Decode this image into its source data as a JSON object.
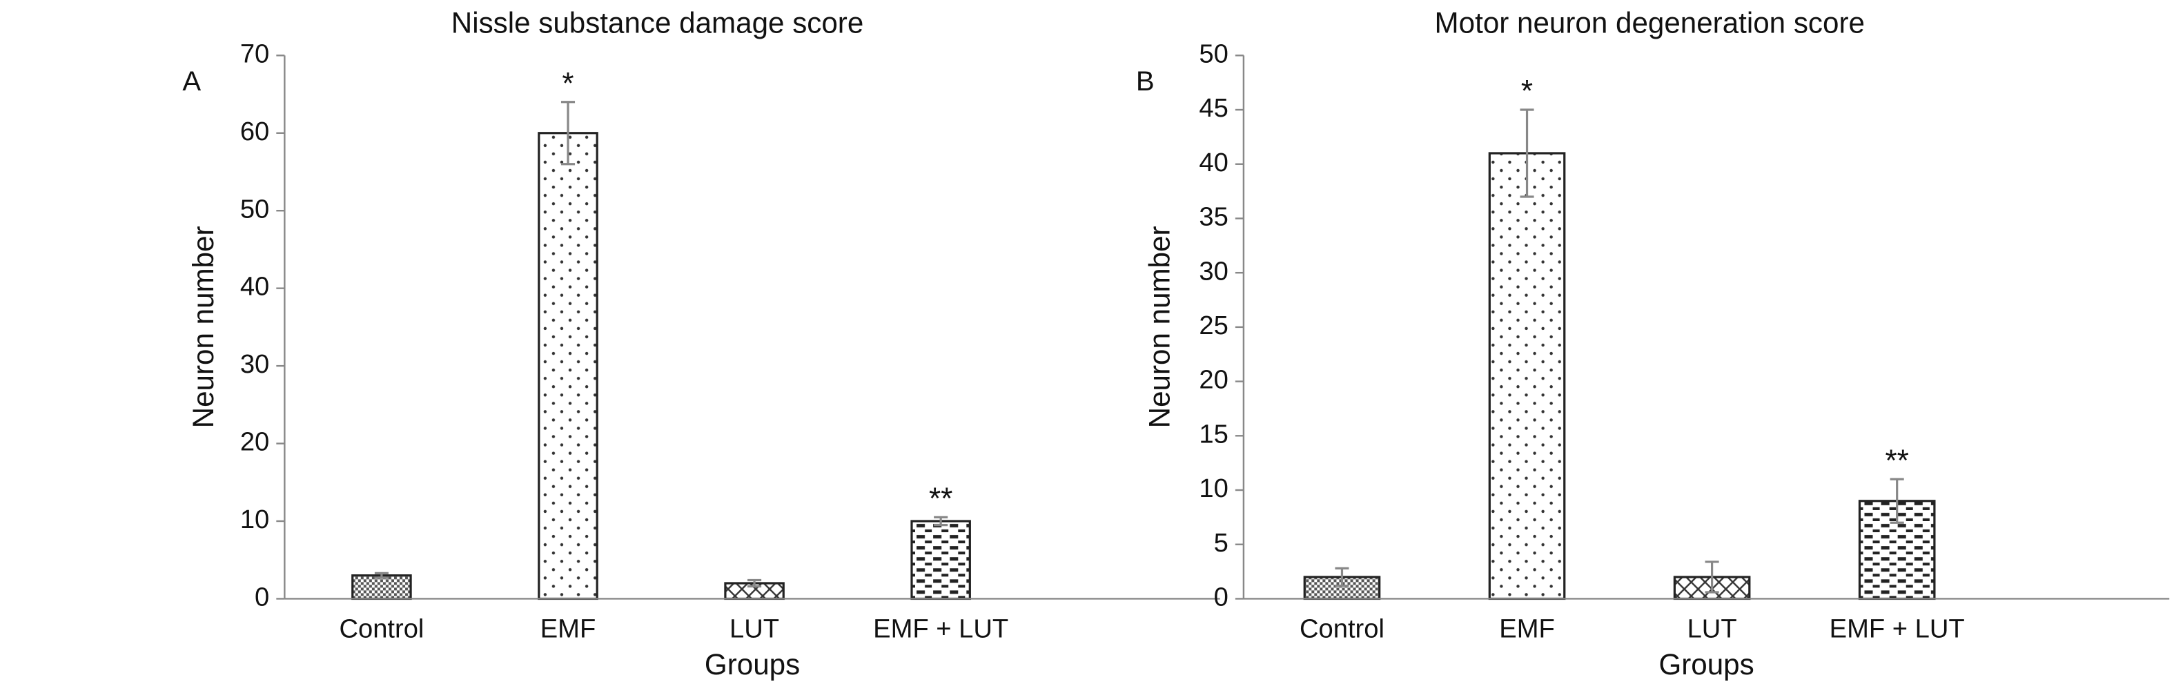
{
  "chart_data": [
    {
      "type": "bar",
      "title": "Nissle substance damage score",
      "panel_label": "A",
      "y_label": "Neuron number",
      "x_label": "Groups",
      "categories": [
        "Control",
        "EMF",
        "LUT",
        "EMF + LUT"
      ],
      "values": [
        3,
        60,
        2,
        10
      ],
      "errors": [
        0.3,
        4,
        0.4,
        0.5
      ],
      "value_annotations": [
        null,
        "*",
        null,
        "**"
      ],
      "ylim": [
        0,
        70
      ],
      "yticks": [
        0,
        10,
        20,
        30,
        40,
        50,
        60,
        70
      ],
      "grid": false,
      "color": "#222222"
    },
    {
      "type": "bar",
      "title": "Motor neuron degeneration score",
      "panel_label": "B",
      "y_label": "Neuron number",
      "x_label": "Groups",
      "categories": [
        "Control",
        "EMF",
        "LUT",
        "EMF + LUT"
      ],
      "values": [
        2,
        41,
        2,
        9
      ],
      "errors": [
        0.8,
        4,
        1.4,
        2
      ],
      "value_annotations": [
        null,
        "*",
        null,
        "**"
      ],
      "ylim": [
        0,
        50
      ],
      "yticks": [
        0,
        5,
        10,
        15,
        20,
        25,
        30,
        35,
        40,
        45,
        50
      ],
      "grid": false,
      "color": "#222222"
    }
  ]
}
